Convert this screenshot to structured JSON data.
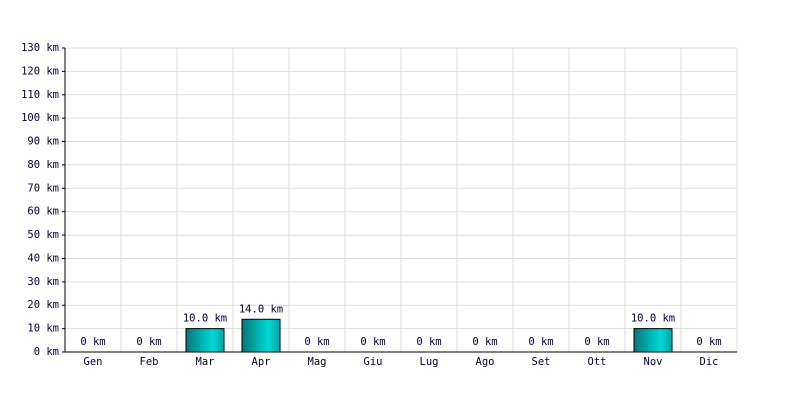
{
  "chart_data": {
    "type": "bar",
    "categories": [
      "Gen",
      "Feb",
      "Mar",
      "Apr",
      "Mag",
      "Giu",
      "Lug",
      "Ago",
      "Set",
      "Ott",
      "Nov",
      "Dic"
    ],
    "values": [
      0,
      0,
      10,
      14,
      0,
      0,
      0,
      0,
      0,
      0,
      10,
      0
    ],
    "value_labels": [
      "0 km",
      "0 km",
      "10.0 km",
      "14.0 km",
      "0 km",
      "0 km",
      "0 km",
      "0 km",
      "0 km",
      "0 km",
      "10.0 km",
      "0 km"
    ],
    "color": "#00d8d8",
    "ylim": [
      0,
      130
    ],
    "yticks": [
      {
        "value": 0,
        "label": "0 km"
      },
      {
        "value": 10,
        "label": "10 km"
      },
      {
        "value": 20,
        "label": "20 km"
      },
      {
        "value": 30,
        "label": "30 km"
      },
      {
        "value": 40,
        "label": "40 km"
      },
      {
        "value": 50,
        "label": "50 km"
      },
      {
        "value": 60,
        "label": "60 km"
      },
      {
        "value": 70,
        "label": "70 km"
      },
      {
        "value": 80,
        "label": "80 km"
      },
      {
        "value": 90,
        "label": "90 km"
      },
      {
        "value": 100,
        "label": "100 km"
      },
      {
        "value": 110,
        "label": "110 km"
      },
      {
        "value": 120,
        "label": "120 km"
      },
      {
        "value": 130,
        "label": "130 km"
      }
    ],
    "grid": true
  }
}
